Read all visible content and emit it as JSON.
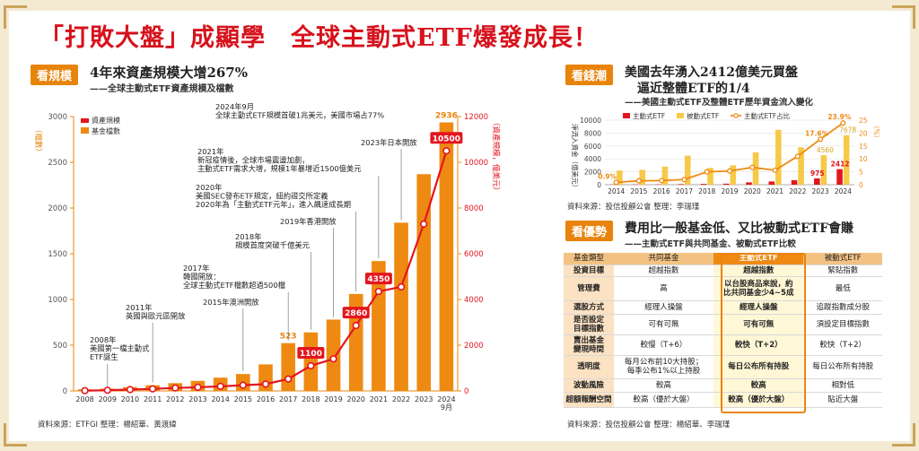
{
  "title": "「打敗大盤」成顯學　全球主動式ETF爆發成長！",
  "panel1": {
    "tag": "看規模",
    "title": "4年來資產規模大增267%",
    "subtitle": "——全球主動式ETF資產規模及檔數",
    "source": "資料來源：ETFGI 整理：楊紹華、黃渡緯",
    "left_axis_label": "（檔數）",
    "right_axis_label": "（資產規模，億美元）",
    "legend": [
      "資產規模",
      "基金檔數"
    ],
    "annotations": [
      "2008年\n美國第一檔主動式\nETF誕生",
      "2011年\n英國與歐元區開放",
      "2015年澳洲開放",
      "2017年\n韓國開放：\n全球主動式ETF檔數超過500檔",
      "2018年\n規模首度突破千億美元",
      "2019年香港開放",
      "2020年\n美國SEC發布ETF規定，紐約證交所定義\n2020年為「主動式ETF元年」，進入飆速成長期",
      "2021年\n新冠疫情後，全球市場震盪加劇，\n主動式ETF需求大增，規模1年暴增近1500億美元",
      "2023年日本開放",
      "2024年9月\n全球主動式ETF規模首破1兆美元，美國市場占77%"
    ]
  },
  "panel2": {
    "tag": "看錢潮",
    "title_line1": "美國去年湧入2412億美元買盤",
    "title_line2": "逼近整體ETF的1/4",
    "subtitle": "——美國主動式ETF及整體ETF歷年資金流入變化",
    "left_axis_label": "淨流入資金（億美元）",
    "right_axis_label": "（%）",
    "legend": [
      "主動式ETF",
      "被動式ETF",
      "主動式ETF占比"
    ],
    "source": "資料來源：投信投顧公會 整理：李瑞瑾"
  },
  "panel3": {
    "tag": "看優勢",
    "title": "費用比一般基金低、又比被動式ETF會賺",
    "subtitle": "——主動式ETF與共同基金、被動式ETF比較",
    "headers": [
      "基金類型",
      "共同基金",
      "主動式ETF",
      "被動式ETF"
    ],
    "rows": [
      [
        "投資目標",
        "超越指數",
        "超越指數",
        "緊貼指數"
      ],
      [
        "管理費",
        "高",
        "以台股商品來說，約\n比共同基金少4~5成",
        "最低"
      ],
      [
        "選股方式",
        "經理人操盤",
        "經理人操盤",
        "追蹤指數成分股"
      ],
      [
        "是否設定\n目標指數",
        "可有可無",
        "可有可無",
        "須設定目標指數"
      ],
      [
        "賣出基金\n變現時間",
        "較慢（T+6）",
        "較快（T+2）",
        "較快（T+2）"
      ],
      [
        "透明度",
        "每月公布前10大持股；\n每季公布1%以上持股",
        "每日公布所有持股",
        "每日公布所有持股"
      ],
      [
        "波動風險",
        "較高",
        "較高",
        "相對低"
      ],
      [
        "超額報酬空間",
        "較高（優於大盤）",
        "較高（優於大盤）",
        "貼近大盤"
      ]
    ],
    "source": "資料來源：投信投顧公會 整理：楊紹華、李瑞瑾"
  },
  "chart_data": [
    {
      "type": "bar",
      "categories": [
        "2008",
        "2009",
        "2010",
        "2011",
        "2012",
        "2013",
        "2014",
        "2015",
        "2016",
        "2017",
        "2018",
        "2019",
        "2020",
        "2021",
        "2022",
        "2023",
        "2024\n9月"
      ],
      "series": [
        {
          "name": "基金檔數",
          "type": "bar",
          "axis": "left",
          "values": [
            18,
            25,
            42,
            62,
            85,
            110,
            145,
            185,
            290,
            523,
            640,
            780,
            1060,
            1420,
            1840,
            2370,
            2936
          ]
        },
        {
          "name": "資產規模",
          "type": "line",
          "axis": "right",
          "values": [
            12,
            30,
            60,
            90,
            130,
            160,
            200,
            250,
            300,
            520,
            1100,
            1400,
            2860,
            4350,
            4550,
            7300,
            10500
          ]
        }
      ],
      "data_labels": {
        "基金檔數": {
          "2017": "523",
          "2024\n9月": "2936"
        },
        "資產規模": {
          "2018": "1100",
          "2020": "2860",
          "2021": "4350",
          "2024\n9月": "10500"
        }
      },
      "ylim_left": [
        0,
        3000
      ],
      "ytick_left": [
        0,
        500,
        1000,
        1500,
        2000,
        2500,
        3000
      ],
      "ylim_right": [
        0,
        12000
      ],
      "ytick_right": [
        0,
        2000,
        4000,
        6000,
        8000,
        10000,
        12000
      ],
      "colors": {
        "bar": "#ee8a12",
        "line": "#e3161e",
        "axis": "#e8840c"
      },
      "legend_position": "top-left"
    },
    {
      "type": "bar",
      "categories": [
        "2014",
        "2015",
        "2016",
        "2017",
        "2018",
        "2019",
        "2020",
        "2021",
        "2022",
        "2023",
        "2024"
      ],
      "series": [
        {
          "name": "主動式ETF",
          "type": "bar",
          "axis": "left",
          "values": [
            30,
            40,
            50,
            90,
            130,
            160,
            360,
            500,
            700,
            975,
            2412
          ]
        },
        {
          "name": "被動式ETF",
          "type": "bar",
          "axis": "left",
          "values": [
            2200,
            2300,
            2800,
            4500,
            2600,
            3000,
            5000,
            8500,
            5800,
            4560,
            7678
          ]
        },
        {
          "name": "主動式ETF占比",
          "type": "line",
          "axis": "right",
          "values": [
            0.9,
            1.5,
            1.6,
            2.0,
            5.0,
            5.3,
            6.7,
            5.6,
            11.0,
            17.6,
            23.9
          ]
        }
      ],
      "data_labels": {
        "主動式ETF": {
          "2023": "975",
          "2024": "2412"
        },
        "被動式ETF": {
          "2023": "4560",
          "2024": "7678"
        },
        "主動式ETF占比": {
          "2014": "0.9%",
          "2023": "17.6%",
          "2024": "23.9%"
        }
      },
      "ylim_left": [
        0,
        10000
      ],
      "ytick_left": [
        0,
        2000,
        4000,
        6000,
        8000,
        10000
      ],
      "ylim_right": [
        0,
        25
      ],
      "ytick_right": [
        0,
        5,
        10,
        15,
        20,
        25
      ],
      "colors": {
        "active": "#e3161e",
        "passive": "#f7c948",
        "share": "#ee8a12"
      },
      "legend_position": "top"
    }
  ]
}
